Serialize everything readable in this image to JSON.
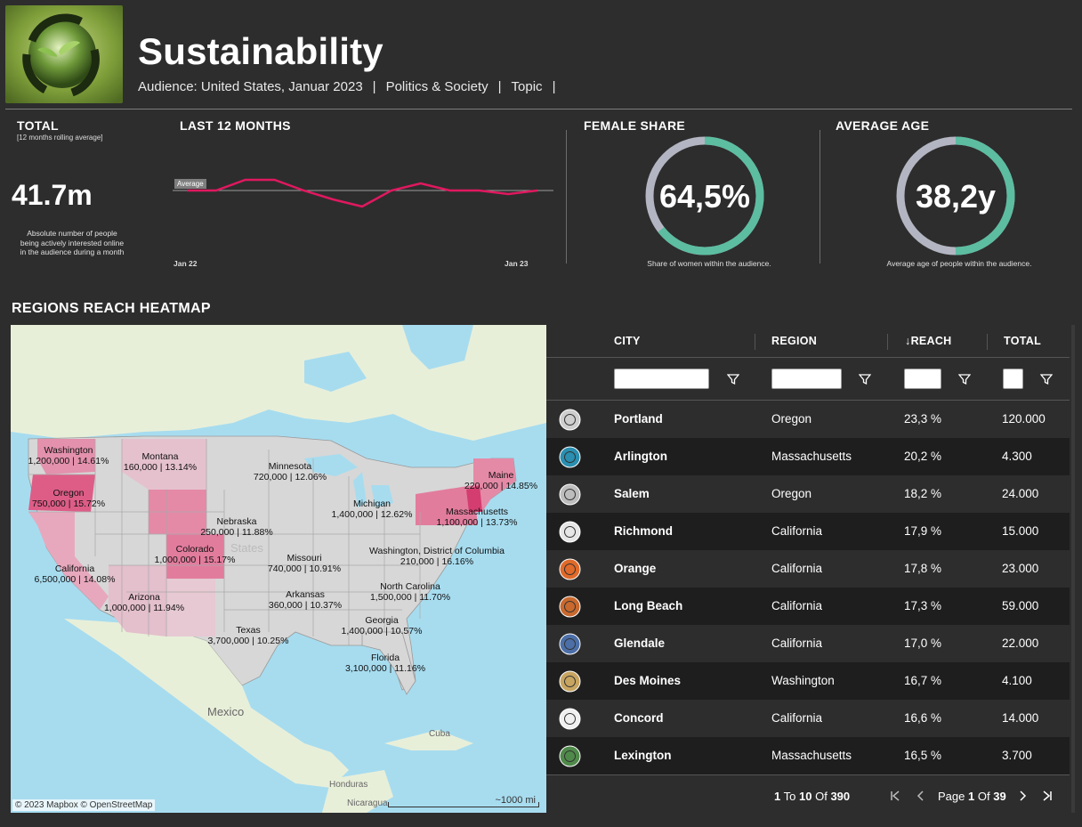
{
  "header": {
    "title": "Sustainability",
    "audience": "Audience: United States, Januar 2023",
    "topic_category": "Politics & Society",
    "topic_label": "Topic",
    "separator": "|"
  },
  "total": {
    "label": "TOTAL",
    "note": "[12 months rolling average]",
    "value": "41.7m",
    "description_1": "Absolute number of people",
    "description_2": "being actively interested online",
    "description_3": "in the audience during a month"
  },
  "last12": {
    "label": "LAST 12 MONTHS",
    "average_label": "Average",
    "x_start": "Jan 22",
    "x_end": "Jan 23",
    "line_color": "#e0185f",
    "trend": [
      0.5,
      0.5,
      0.2,
      0.2,
      0.5,
      0.75,
      0.95,
      0.5,
      0.3,
      0.5,
      0.5,
      0.6,
      0.5
    ]
  },
  "female_share": {
    "label": "FEMALE SHARE",
    "value": "64,5%",
    "fraction": 0.645,
    "description": "Share of women within the audience.",
    "fill_color": "#5cbda0",
    "track_color": "#b3b6c2"
  },
  "average_age": {
    "label": "AVERAGE AGE",
    "value": "38,2y",
    "fraction": 0.5,
    "description": "Average age of people within the audience.",
    "fill_color": "#5cbda0",
    "track_color": "#b3b6c2"
  },
  "map": {
    "title": "REGIONS REACH HEATMAP",
    "credit": "© 2023 Mapbox © OpenStreetMap",
    "scale": "~1000 mi",
    "place_mexico": "Mexico",
    "place_states": "States",
    "place_cuba": "Cuba",
    "place_honduras": "Honduras",
    "place_nicaragua": "Nicaragua",
    "regions": [
      {
        "name": "Washington",
        "value": "1,200,000 | 14.61%"
      },
      {
        "name": "Montana",
        "value": "160,000 | 13.14%"
      },
      {
        "name": "Minnesota",
        "value": "720,000 | 12.06%"
      },
      {
        "name": "Maine",
        "value": "220,000 | 14.85%"
      },
      {
        "name": "Oregon",
        "value": "750,000 | 15.72%"
      },
      {
        "name": "Michigan",
        "value": "1,400,000 | 12.62%"
      },
      {
        "name": "Massachusetts",
        "value": "1,100,000 | 13.73%"
      },
      {
        "name": "Nebraska",
        "value": "250,000 | 11.88%"
      },
      {
        "name": "Colorado",
        "value": "1,000,000 | 15.17%"
      },
      {
        "name": "Washington, District of Columbia",
        "value": "210,000 | 16.16%"
      },
      {
        "name": "California",
        "value": "6,500,000 | 14.08%"
      },
      {
        "name": "Missouri",
        "value": "740,000 | 10.91%"
      },
      {
        "name": "North Carolina",
        "value": "1,500,000 | 11.70%"
      },
      {
        "name": "Arizona",
        "value": "1,000,000 | 11.94%"
      },
      {
        "name": "Arkansas",
        "value": "360,000 | 10.37%"
      },
      {
        "name": "Georgia",
        "value": "1,400,000 | 10.57%"
      },
      {
        "name": "Texas",
        "value": "3,700,000 | 10.25%"
      },
      {
        "name": "Florida",
        "value": "3,100,000 | 11.16%"
      }
    ]
  },
  "table": {
    "headers": {
      "city": "CITY",
      "region": "REGION",
      "reach": "REACH",
      "reach_sort": "↓",
      "total": "TOTAL"
    },
    "rows": [
      {
        "city": "Portland",
        "region": "Oregon",
        "reach": "23,3 %",
        "total": "120.000",
        "seal_color": "#cfcfcf"
      },
      {
        "city": "Arlington",
        "region": "Massachusetts",
        "reach": "20,2 %",
        "total": "4.300",
        "seal_color": "#2a8fb0"
      },
      {
        "city": "Salem",
        "region": "Oregon",
        "reach": "18,2 %",
        "total": "24.000",
        "seal_color": "#bdbdbd"
      },
      {
        "city": "Richmond",
        "region": "California",
        "reach": "17,9 %",
        "total": "15.000",
        "seal_color": "#e6e6e6"
      },
      {
        "city": "Orange",
        "region": "California",
        "reach": "17,8 %",
        "total": "23.000",
        "seal_color": "#e06a2a"
      },
      {
        "city": "Long Beach",
        "region": "California",
        "reach": "17,3 %",
        "total": "59.000",
        "seal_color": "#c9692e"
      },
      {
        "city": "Glendale",
        "region": "California",
        "reach": "17,0 %",
        "total": "22.000",
        "seal_color": "#4c6fa8"
      },
      {
        "city": "Des Moines",
        "region": "Washington",
        "reach": "16,7 %",
        "total": "4.100",
        "seal_color": "#c7a561"
      },
      {
        "city": "Concord",
        "region": "California",
        "reach": "16,6 %",
        "total": "14.000",
        "seal_color": "#f0f0f0"
      },
      {
        "city": "Lexington",
        "region": "Massachusetts",
        "reach": "16,5 %",
        "total": "3.700",
        "seal_color": "#4f8a4a"
      }
    ],
    "footer": {
      "from": "1",
      "to_word": "To",
      "to": "10",
      "of_word": "Of",
      "count": "390",
      "page_word": "Page",
      "page": "1",
      "page_of_word": "Of",
      "pages": "39"
    }
  }
}
